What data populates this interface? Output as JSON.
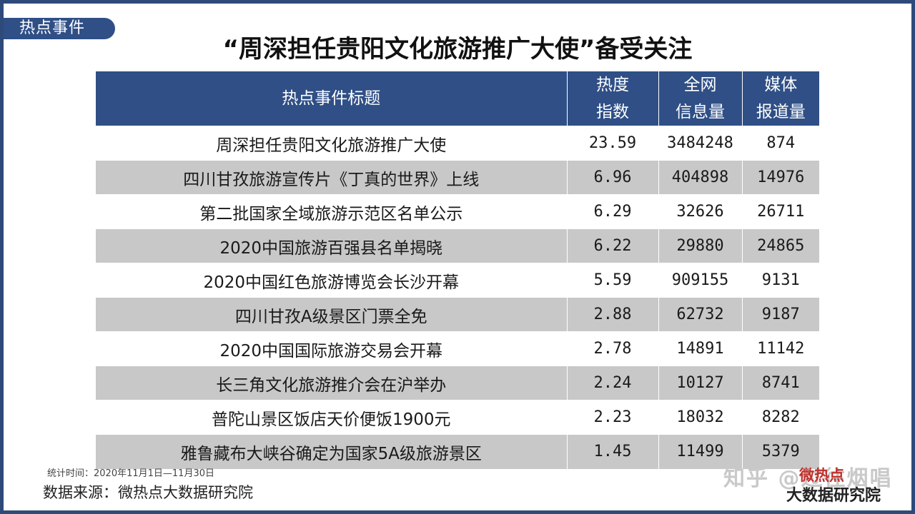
{
  "tag": "热点事件",
  "title": "“周深担任贵阳文化旅游推广大使”备受关注",
  "headers": {
    "event": "热点事件标题",
    "heat_1": "热度",
    "heat_2": "指数",
    "info_1": "全网",
    "info_2": "信息量",
    "media_1": "媒体",
    "media_2": "报道量"
  },
  "rows": [
    {
      "event": "周深担任贵阳文化旅游推广大使",
      "heat": "23.59",
      "info": "3484248",
      "media": "874"
    },
    {
      "event": "四川甘孜旅游宣传片《丁真的世界》上线",
      "heat": "6.96",
      "info": "404898",
      "media": "14976"
    },
    {
      "event": "第二批国家全域旅游示范区名单公示",
      "heat": "6.29",
      "info": "32626",
      "media": "26711"
    },
    {
      "event": "2020中国旅游百强县名单揭晓",
      "heat": "6.22",
      "info": "29880",
      "media": "24865"
    },
    {
      "event": "2020中国红色旅游博览会长沙开幕",
      "heat": "5.59",
      "info": "909155",
      "media": "9131"
    },
    {
      "event": "四川甘孜A级景区门票全免",
      "heat": "2.88",
      "info": "62732",
      "media": "9187"
    },
    {
      "event": "2020中国国际旅游交易会开幕",
      "heat": "2.78",
      "info": "14891",
      "media": "11142"
    },
    {
      "event": "长三角文化旅游推介会在沪举办",
      "heat": "2.24",
      "info": "10127",
      "media": "8741"
    },
    {
      "event": "普陀山景区饭店天价便饭1900元",
      "heat": "2.23",
      "info": "18032",
      "media": "8282"
    },
    {
      "event": "雅鲁藏布大峡谷确定为国家5A级旅游景区",
      "heat": "1.45",
      "info": "11499",
      "media": "5379"
    }
  ],
  "stat_time": "统计时间：2020年11月1日—11月30日",
  "source": "数据来源：微热点大数据研究院",
  "watermark": "知乎 @过往烟唱",
  "logo_top": "微热点",
  "logo_bottom": "大数据研究院",
  "colors": {
    "header_bg": "#2f4f86",
    "row_shade": "#c8c8c8",
    "frame": "#2e4a7a"
  }
}
